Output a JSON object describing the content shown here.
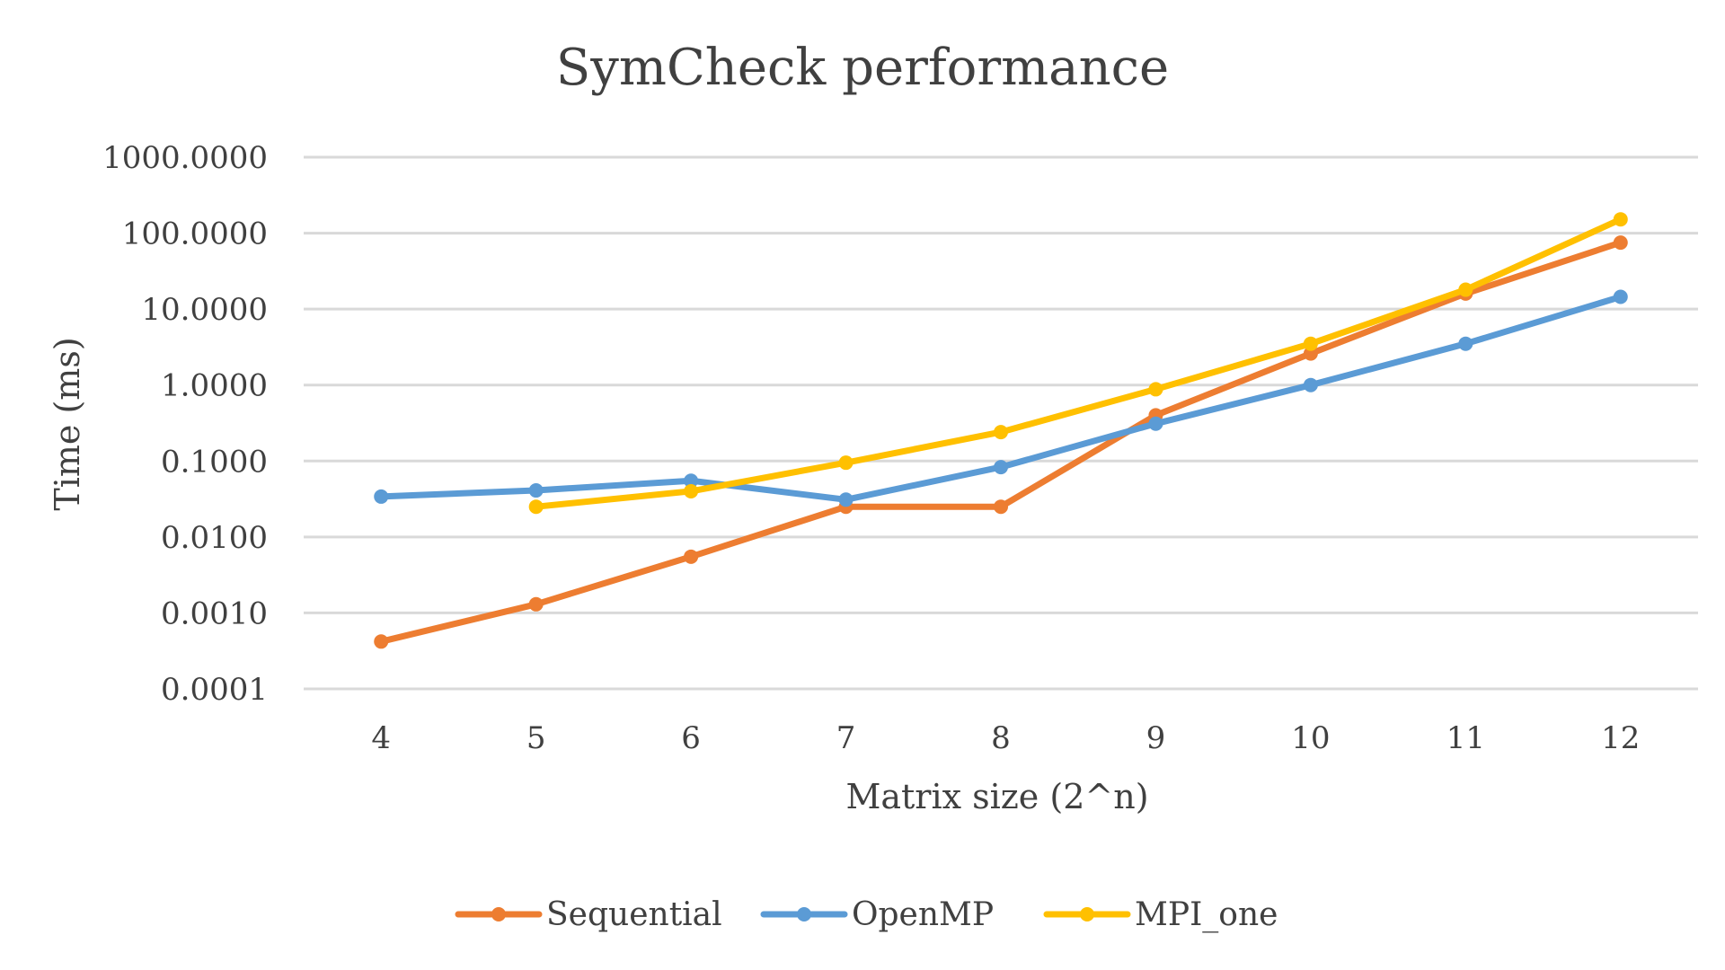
{
  "chart_data": {
    "type": "line",
    "title": "SymCheck performance",
    "xlabel": "Matrix size (2^n)",
    "ylabel": "Time (ms)",
    "y_scale": "log",
    "ylim": [
      0.0001,
      1000
    ],
    "y_ticks": [
      {
        "value": 0.0001,
        "label": "0.0001"
      },
      {
        "value": 0.001,
        "label": "0.0010"
      },
      {
        "value": 0.01,
        "label": "0.0100"
      },
      {
        "value": 0.1,
        "label": "0.1000"
      },
      {
        "value": 1,
        "label": "1.0000"
      },
      {
        "value": 10,
        "label": "10.0000"
      },
      {
        "value": 100,
        "label": "100.0000"
      },
      {
        "value": 1000,
        "label": "1000.0000"
      }
    ],
    "categories": [
      "4",
      "5",
      "6",
      "7",
      "8",
      "9",
      "10",
      "11",
      "12"
    ],
    "grid": true,
    "legend": "bottom",
    "series": [
      {
        "name": "Sequential",
        "color": "#ED7D31",
        "values": [
          0.00042,
          0.0013,
          0.0055,
          0.025,
          0.025,
          0.4,
          2.6,
          16,
          75
        ]
      },
      {
        "name": "OpenMP",
        "color": "#5B9BD5",
        "values": [
          0.034,
          0.041,
          0.055,
          0.031,
          0.083,
          0.31,
          1.0,
          3.5,
          14.5
        ]
      },
      {
        "name": "MPI_one",
        "color": "#FFC000",
        "values": [
          null,
          0.025,
          0.04,
          0.095,
          0.24,
          0.88,
          3.5,
          18,
          152
        ]
      }
    ]
  }
}
